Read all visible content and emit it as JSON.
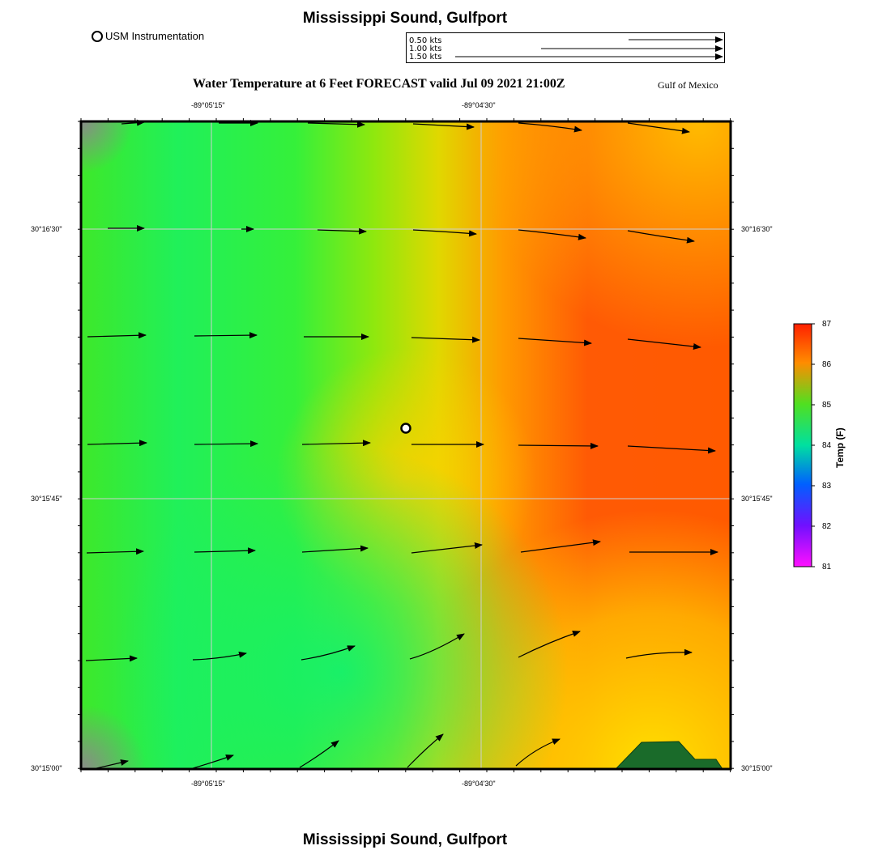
{
  "header": {
    "title": "Mississippi Sound, Gulfport",
    "legend_label": "USM Instrumentation",
    "subtitle": "Water Temperature at 6 Feet FORECAST valid Jul 09 2021 21:00Z",
    "region": "Gulf of Mexico"
  },
  "current_scale": {
    "labels": [
      "0.50 kts",
      "1.00 kts",
      "1.50 kts"
    ],
    "speeds_kts": [
      0.5,
      1.0,
      1.5
    ]
  },
  "map": {
    "lon_ticks": [
      "-89°05'15\"",
      "-89°04'30\""
    ],
    "lat_ticks": [
      "30°16'30\"",
      "30°15'45\"",
      "30°15'00\""
    ],
    "instrument_marker": "USM Instrumentation",
    "land_color": "#1a6b2a"
  },
  "colorbar": {
    "title": "Temp (F)",
    "ticks": [
      "87",
      "86",
      "85",
      "84",
      "83",
      "82",
      "81"
    ],
    "min": 81,
    "max": 87
  },
  "footer": {
    "title": "Mississippi Sound, Gulfport"
  }
}
